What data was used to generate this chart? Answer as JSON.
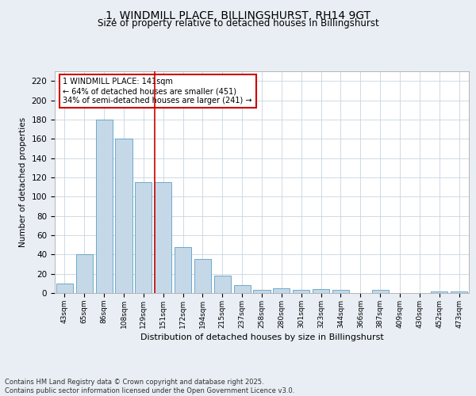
{
  "title1": "1, WINDMILL PLACE, BILLINGSHURST, RH14 9GT",
  "title2": "Size of property relative to detached houses in Billingshurst",
  "xlabel": "Distribution of detached houses by size in Billingshurst",
  "ylabel": "Number of detached properties",
  "categories": [
    "43sqm",
    "65sqm",
    "86sqm",
    "108sqm",
    "129sqm",
    "151sqm",
    "172sqm",
    "194sqm",
    "215sqm",
    "237sqm",
    "258sqm",
    "280sqm",
    "301sqm",
    "323sqm",
    "344sqm",
    "366sqm",
    "387sqm",
    "409sqm",
    "430sqm",
    "452sqm",
    "473sqm"
  ],
  "values": [
    10,
    40,
    180,
    160,
    115,
    115,
    48,
    35,
    18,
    8,
    3,
    5,
    3,
    4,
    3,
    0,
    3,
    0,
    0,
    2,
    2
  ],
  "bar_color": "#c5d8e8",
  "bar_edgecolor": "#5a9fc4",
  "red_line_index": 5,
  "annotation_text": "1 WINDMILL PLACE: 141sqm\n← 64% of detached houses are smaller (451)\n34% of semi-detached houses are larger (241) →",
  "annotation_box_color": "#ffffff",
  "annotation_border_color": "#cc0000",
  "footer": "Contains HM Land Registry data © Crown copyright and database right 2025.\nContains public sector information licensed under the Open Government Licence v3.0.",
  "ylim": [
    0,
    230
  ],
  "yticks": [
    0,
    20,
    40,
    60,
    80,
    100,
    120,
    140,
    160,
    180,
    200,
    220
  ],
  "background_color": "#e8eef4",
  "plot_background": "#ffffff",
  "grid_color": "#c8d4e0",
  "title1_fontsize": 10,
  "title2_fontsize": 8.5
}
